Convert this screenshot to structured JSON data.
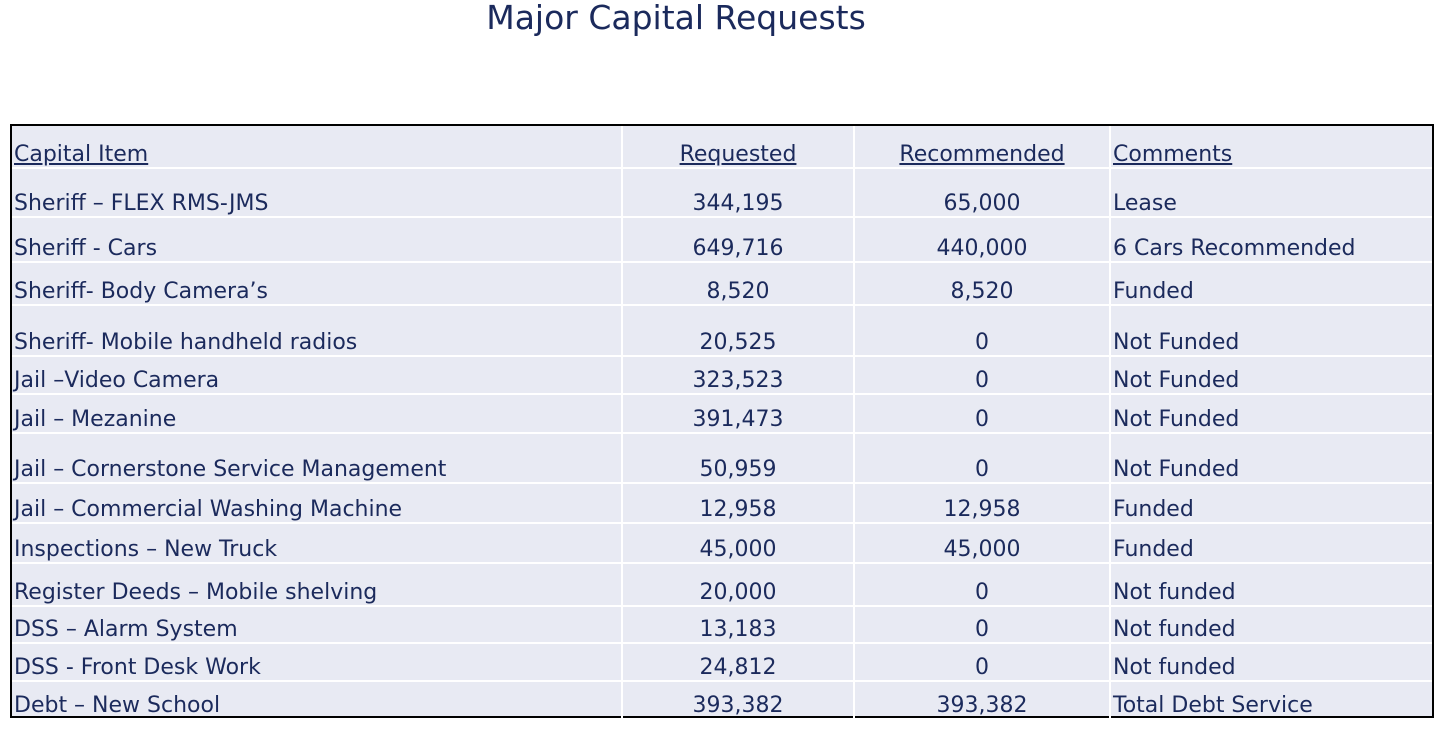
{
  "slide": {
    "title": "Major Capital Requests"
  },
  "table": {
    "headers": [
      "Capital Item",
      "Requested",
      "Recommended",
      "Comments"
    ],
    "rows": [
      [
        "Sheriff – FLEX RMS-JMS",
        "344,195",
        "65,000",
        "Lease"
      ],
      [
        "Sheriff - Cars",
        "649,716",
        "440,000",
        "6 Cars Recommended"
      ],
      [
        "Sheriff- Body Camera’s",
        "8,520",
        "8,520",
        "Funded"
      ],
      [
        "Sheriff- Mobile handheld radios",
        "20,525",
        "0",
        "Not Funded"
      ],
      [
        "Jail –Video Camera",
        "323,523",
        "0",
        "Not Funded"
      ],
      [
        "Jail – Mezanine",
        "391,473",
        "0",
        "Not Funded"
      ],
      [
        "Jail – Cornerstone Service Management",
        "50,959",
        "0",
        "Not Funded"
      ],
      [
        "Jail – Commercial Washing Machine",
        "12,958",
        "12,958",
        "Funded"
      ],
      [
        "Inspections – New Truck",
        "45,000",
        "45,000",
        "Funded"
      ],
      [
        "Register Deeds – Mobile shelving",
        "20,000",
        "0",
        "Not funded"
      ],
      [
        "DSS – Alarm System",
        "13,183",
        "0",
        "Not funded"
      ],
      [
        "DSS -  Front Desk Work",
        "24,812",
        "0",
        "Not funded"
      ],
      [
        "Debt – New School",
        "393,382",
        "393,382",
        "Total Debt Service"
      ]
    ]
  }
}
